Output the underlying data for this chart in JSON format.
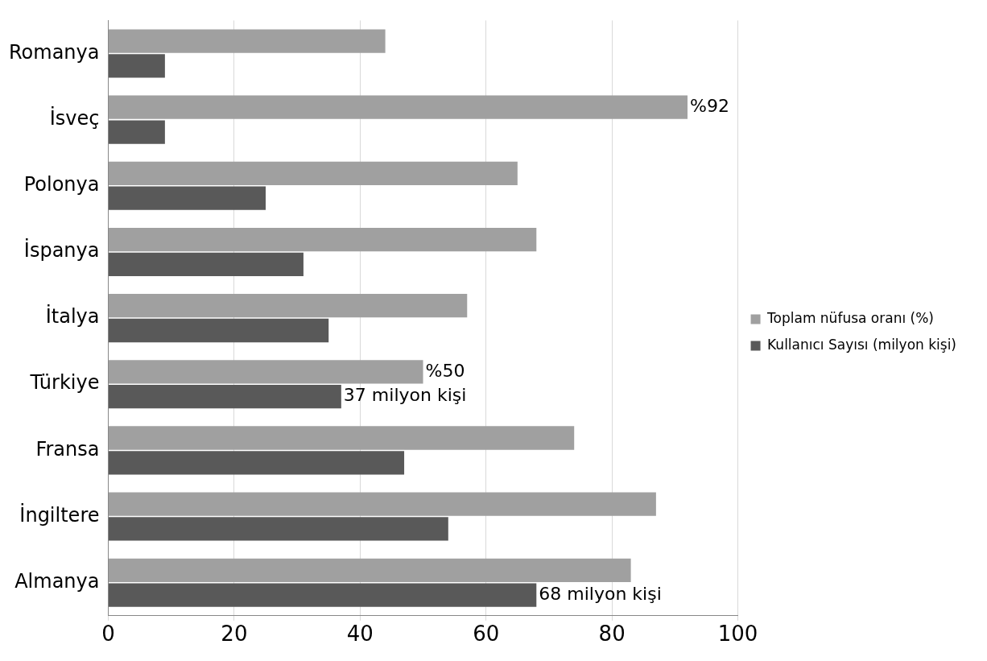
{
  "chart_data": {
    "type": "bar",
    "orientation": "horizontal",
    "categories": [
      "Romanya",
      "İsveç",
      "Polonya",
      "İspanya",
      "İtalya",
      "Türkiye",
      "Fransa",
      "İngiltere",
      "Almanya"
    ],
    "series": [
      {
        "name": "Toplam nüfusa oranı (%)",
        "color": "#a0a0a0",
        "values": [
          44,
          92,
          65,
          68,
          57,
          50,
          74,
          87,
          83
        ],
        "value_labels": [
          null,
          "%92",
          null,
          null,
          null,
          "%50",
          null,
          null,
          null
        ]
      },
      {
        "name": "Kullanıcı Sayısı (milyon kişi)",
        "color": "#595959",
        "values": [
          9,
          9,
          25,
          31,
          35,
          37,
          47,
          54,
          68
        ],
        "value_labels": [
          null,
          null,
          null,
          null,
          null,
          "37 milyon kişi",
          null,
          null,
          "68 milyon kişi"
        ]
      }
    ],
    "xlim": [
      0,
      100
    ],
    "xticks": [
      0,
      20,
      40,
      60,
      80,
      100
    ],
    "grid": "x",
    "legend": "right"
  }
}
